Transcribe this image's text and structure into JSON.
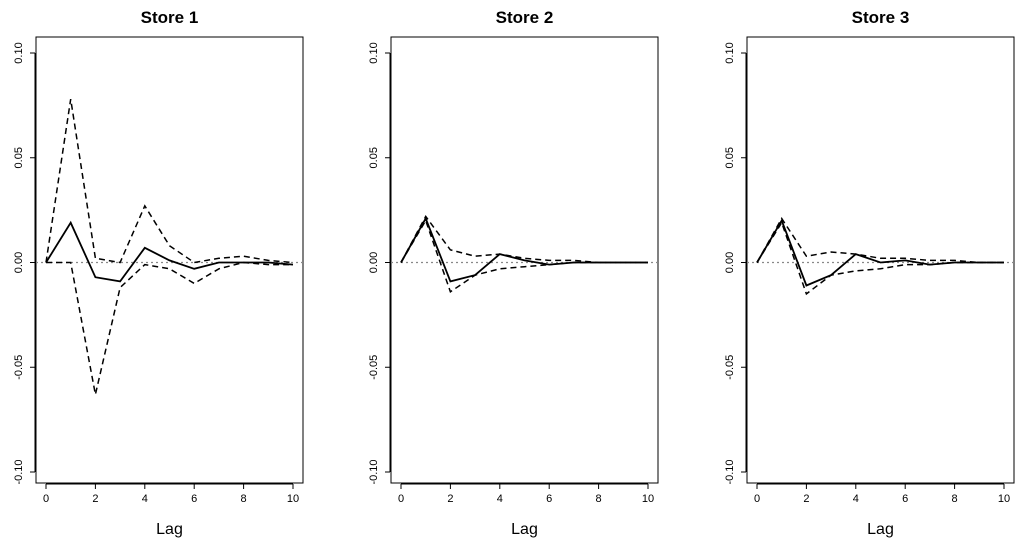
{
  "chart_data": [
    {
      "type": "line",
      "title": "Store 1",
      "xlabel": "Lag",
      "ylabel": "",
      "xlim": [
        0,
        10
      ],
      "ylim": [
        -0.1,
        0.1
      ],
      "x_ticks": [
        "0",
        "2",
        "4",
        "6",
        "8",
        "10"
      ],
      "y_ticks": [
        "-0.10",
        "-0.05",
        "0.00",
        "0.05",
        "0.10"
      ],
      "grid": false,
      "x": [
        0,
        1,
        2,
        3,
        4,
        5,
        6,
        7,
        8,
        9,
        10
      ],
      "series": [
        {
          "style": "solid",
          "values": [
            0,
            0.019,
            -0.007,
            -0.009,
            0.007,
            0.001,
            -0.003,
            0.0,
            0.0,
            0.0,
            -0.001
          ]
        },
        {
          "style": "dashed",
          "values": [
            0,
            0.078,
            0.002,
            0.0,
            0.027,
            0.008,
            0.0,
            0.002,
            0.003,
            0.001,
            0.0
          ]
        },
        {
          "style": "dashed",
          "values": [
            0,
            0.0,
            -0.063,
            -0.012,
            -0.001,
            -0.003,
            -0.01,
            -0.003,
            0.0,
            -0.001,
            -0.001
          ]
        }
      ],
      "reference_line": {
        "y": 0,
        "style": "dotted",
        "color": "#888888"
      }
    },
    {
      "type": "line",
      "title": "Store 2",
      "xlabel": "Lag",
      "ylabel": "",
      "xlim": [
        0,
        10
      ],
      "ylim": [
        -0.1,
        0.1
      ],
      "x_ticks": [
        "0",
        "2",
        "4",
        "6",
        "8",
        "10"
      ],
      "y_ticks": [
        "-0.10",
        "-0.05",
        "0.00",
        "0.05",
        "0.10"
      ],
      "grid": false,
      "x": [
        0,
        1,
        2,
        3,
        4,
        5,
        6,
        7,
        8,
        9,
        10
      ],
      "series": [
        {
          "style": "solid",
          "values": [
            0,
            0.021,
            -0.009,
            -0.006,
            0.004,
            0.001,
            -0.001,
            0.0,
            0.0,
            0.0,
            0.0
          ]
        },
        {
          "style": "dashed",
          "values": [
            0,
            0.022,
            0.006,
            0.003,
            0.004,
            0.002,
            0.001,
            0.001,
            0.0,
            0.0,
            0.0
          ]
        },
        {
          "style": "dashed",
          "values": [
            0,
            0.02,
            -0.014,
            -0.006,
            -0.003,
            -0.002,
            -0.001,
            0.0,
            0.0,
            0.0,
            0.0
          ]
        }
      ],
      "reference_line": {
        "y": 0,
        "style": "dotted",
        "color": "#888888"
      }
    },
    {
      "type": "line",
      "title": "Store 3",
      "xlabel": "Lag",
      "ylabel": "",
      "xlim": [
        0,
        10
      ],
      "ylim": [
        -0.1,
        0.1
      ],
      "x_ticks": [
        "0",
        "2",
        "4",
        "6",
        "8",
        "10"
      ],
      "y_ticks": [
        "-0.10",
        "-0.05",
        "0.00",
        "0.05",
        "0.10"
      ],
      "grid": false,
      "x": [
        0,
        1,
        2,
        3,
        4,
        5,
        6,
        7,
        8,
        9,
        10
      ],
      "series": [
        {
          "style": "solid",
          "values": [
            0,
            0.02,
            -0.011,
            -0.006,
            0.004,
            0.0,
            0.001,
            -0.001,
            0.0,
            0.0,
            0.0
          ]
        },
        {
          "style": "dashed",
          "values": [
            0,
            0.021,
            0.003,
            0.005,
            0.004,
            0.002,
            0.002,
            0.001,
            0.001,
            0.0,
            0.0
          ]
        },
        {
          "style": "dashed",
          "values": [
            0,
            0.019,
            -0.015,
            -0.006,
            -0.004,
            -0.003,
            -0.001,
            -0.001,
            0.0,
            0.0,
            0.0
          ]
        }
      ],
      "reference_line": {
        "y": 0,
        "style": "dotted",
        "color": "#888888"
      }
    }
  ]
}
